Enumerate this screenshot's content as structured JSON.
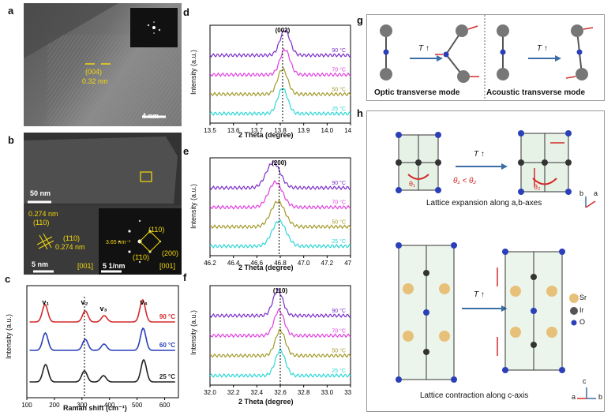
{
  "panels": {
    "a": {
      "label": "a",
      "lattice_plane": "(004)",
      "spacing": "0.32 nm",
      "scale": "4 nm"
    },
    "b": {
      "label": "b",
      "scale_top": "50 nm",
      "d1": "0.274 nm",
      "p1": "(110)",
      "p2": "(1̄10)",
      "d2": "0.274 nm",
      "angle": "90°",
      "scale_bottom": "5 nm",
      "axis_left": "[001]",
      "fft_d": "3.65 nm⁻¹",
      "fft_p1": "(110)",
      "fft_p2": "(1̄10)",
      "fft_p3": "(200)",
      "fft_angle": "90°",
      "fft_scale": "5 1/nm",
      "axis_right": "[001]"
    },
    "c": {
      "label": "c",
      "modes": [
        "v₁",
        "v₂",
        "v₃",
        "v₄"
      ]
    },
    "d": {
      "label": "d",
      "peak": "(002)"
    },
    "e": {
      "label": "e",
      "peak": "(200)"
    },
    "f": {
      "label": "f",
      "peak": "(110)"
    },
    "g": {
      "label": "g",
      "optic": "Optic transverse mode",
      "acoustic": "Acoustic transverse mode",
      "arrow": "T ↑"
    },
    "h": {
      "label": "h",
      "arrow": "T ↑",
      "theta1": "θ₁",
      "theta2": "θ₂",
      "relation": "θ₁ < θ₂",
      "expansion": "Lattice expansion along a,b-axes",
      "contraction": "Lattice contraction along c-axis",
      "legend": [
        "Sr",
        "Ir",
        "O"
      ],
      "axis_b": "b",
      "axis_a": "a",
      "axis_c": "c"
    }
  },
  "colors": {
    "cyan": "#2fd6d6",
    "olive": "#a39a2a",
    "magenta": "#e040e0",
    "purple": "#7a2fc8",
    "red": "#d42a2a",
    "blue": "#2a3fb8",
    "black": "#222"
  },
  "chart_data": [
    {
      "type": "line",
      "panel": "c",
      "xlabel": "Raman shift (cm⁻¹)",
      "ylabel": "Intensity (a.u.)",
      "xlim": [
        100,
        650
      ],
      "xticks": [
        100,
        200,
        300,
        400,
        500,
        600
      ],
      "series": [
        {
          "name": "25 °C",
          "peaks": [
            168,
            309,
            378,
            524
          ]
        },
        {
          "name": "60 °C",
          "peaks": [
            167,
            312,
            380,
            522
          ]
        },
        {
          "name": "90 °C",
          "peaks": [
            166,
            312,
            381,
            520
          ]
        }
      ]
    },
    {
      "type": "line",
      "panel": "d",
      "xlabel": "2 Theta (degree)",
      "ylabel": "Intensity (a.u.)",
      "xlim": [
        13.5,
        14.1
      ],
      "xticks": [
        "13.5",
        "13.6",
        "13.7",
        "13.8",
        "13.9",
        "14.0",
        "14.1"
      ],
      "peak_position": 13.81,
      "series": [
        {
          "name": "25 °C",
          "peak": 13.81
        },
        {
          "name": "50 °C",
          "peak": 13.81
        },
        {
          "name": "70 °C",
          "peak": 13.82
        },
        {
          "name": "90 °C",
          "peak": 13.82
        }
      ]
    },
    {
      "type": "line",
      "panel": "e",
      "xlabel": "2 Theta (degree)",
      "ylabel": "Intensity (a.u.)",
      "xlim": [
        46.2,
        47.4
      ],
      "xticks": [
        "46.2",
        "46.4",
        "46.6",
        "46.8",
        "47.0",
        "47.2",
        "47.4"
      ],
      "peak_position": 46.79,
      "series": [
        {
          "name": "25 °C",
          "peak": 46.79
        },
        {
          "name": "50 °C",
          "peak": 46.78
        },
        {
          "name": "70 °C",
          "peak": 46.76
        },
        {
          "name": "90 °C",
          "peak": 46.74
        }
      ]
    },
    {
      "type": "line",
      "panel": "f",
      "xlabel": "2 Theta (degree)",
      "ylabel": "Intensity (a.u.)",
      "xlim": [
        32.0,
        33.2
      ],
      "xticks": [
        "32.0",
        "32.2",
        "32.4",
        "32.6",
        "32.8",
        "33.0",
        "33.2"
      ],
      "peak_position": 32.6,
      "series": [
        {
          "name": "25 °C",
          "peak": 32.6
        },
        {
          "name": "50 °C",
          "peak": 32.6
        },
        {
          "name": "70 °C",
          "peak": 32.59
        },
        {
          "name": "90 °C",
          "peak": 32.58
        }
      ]
    }
  ]
}
